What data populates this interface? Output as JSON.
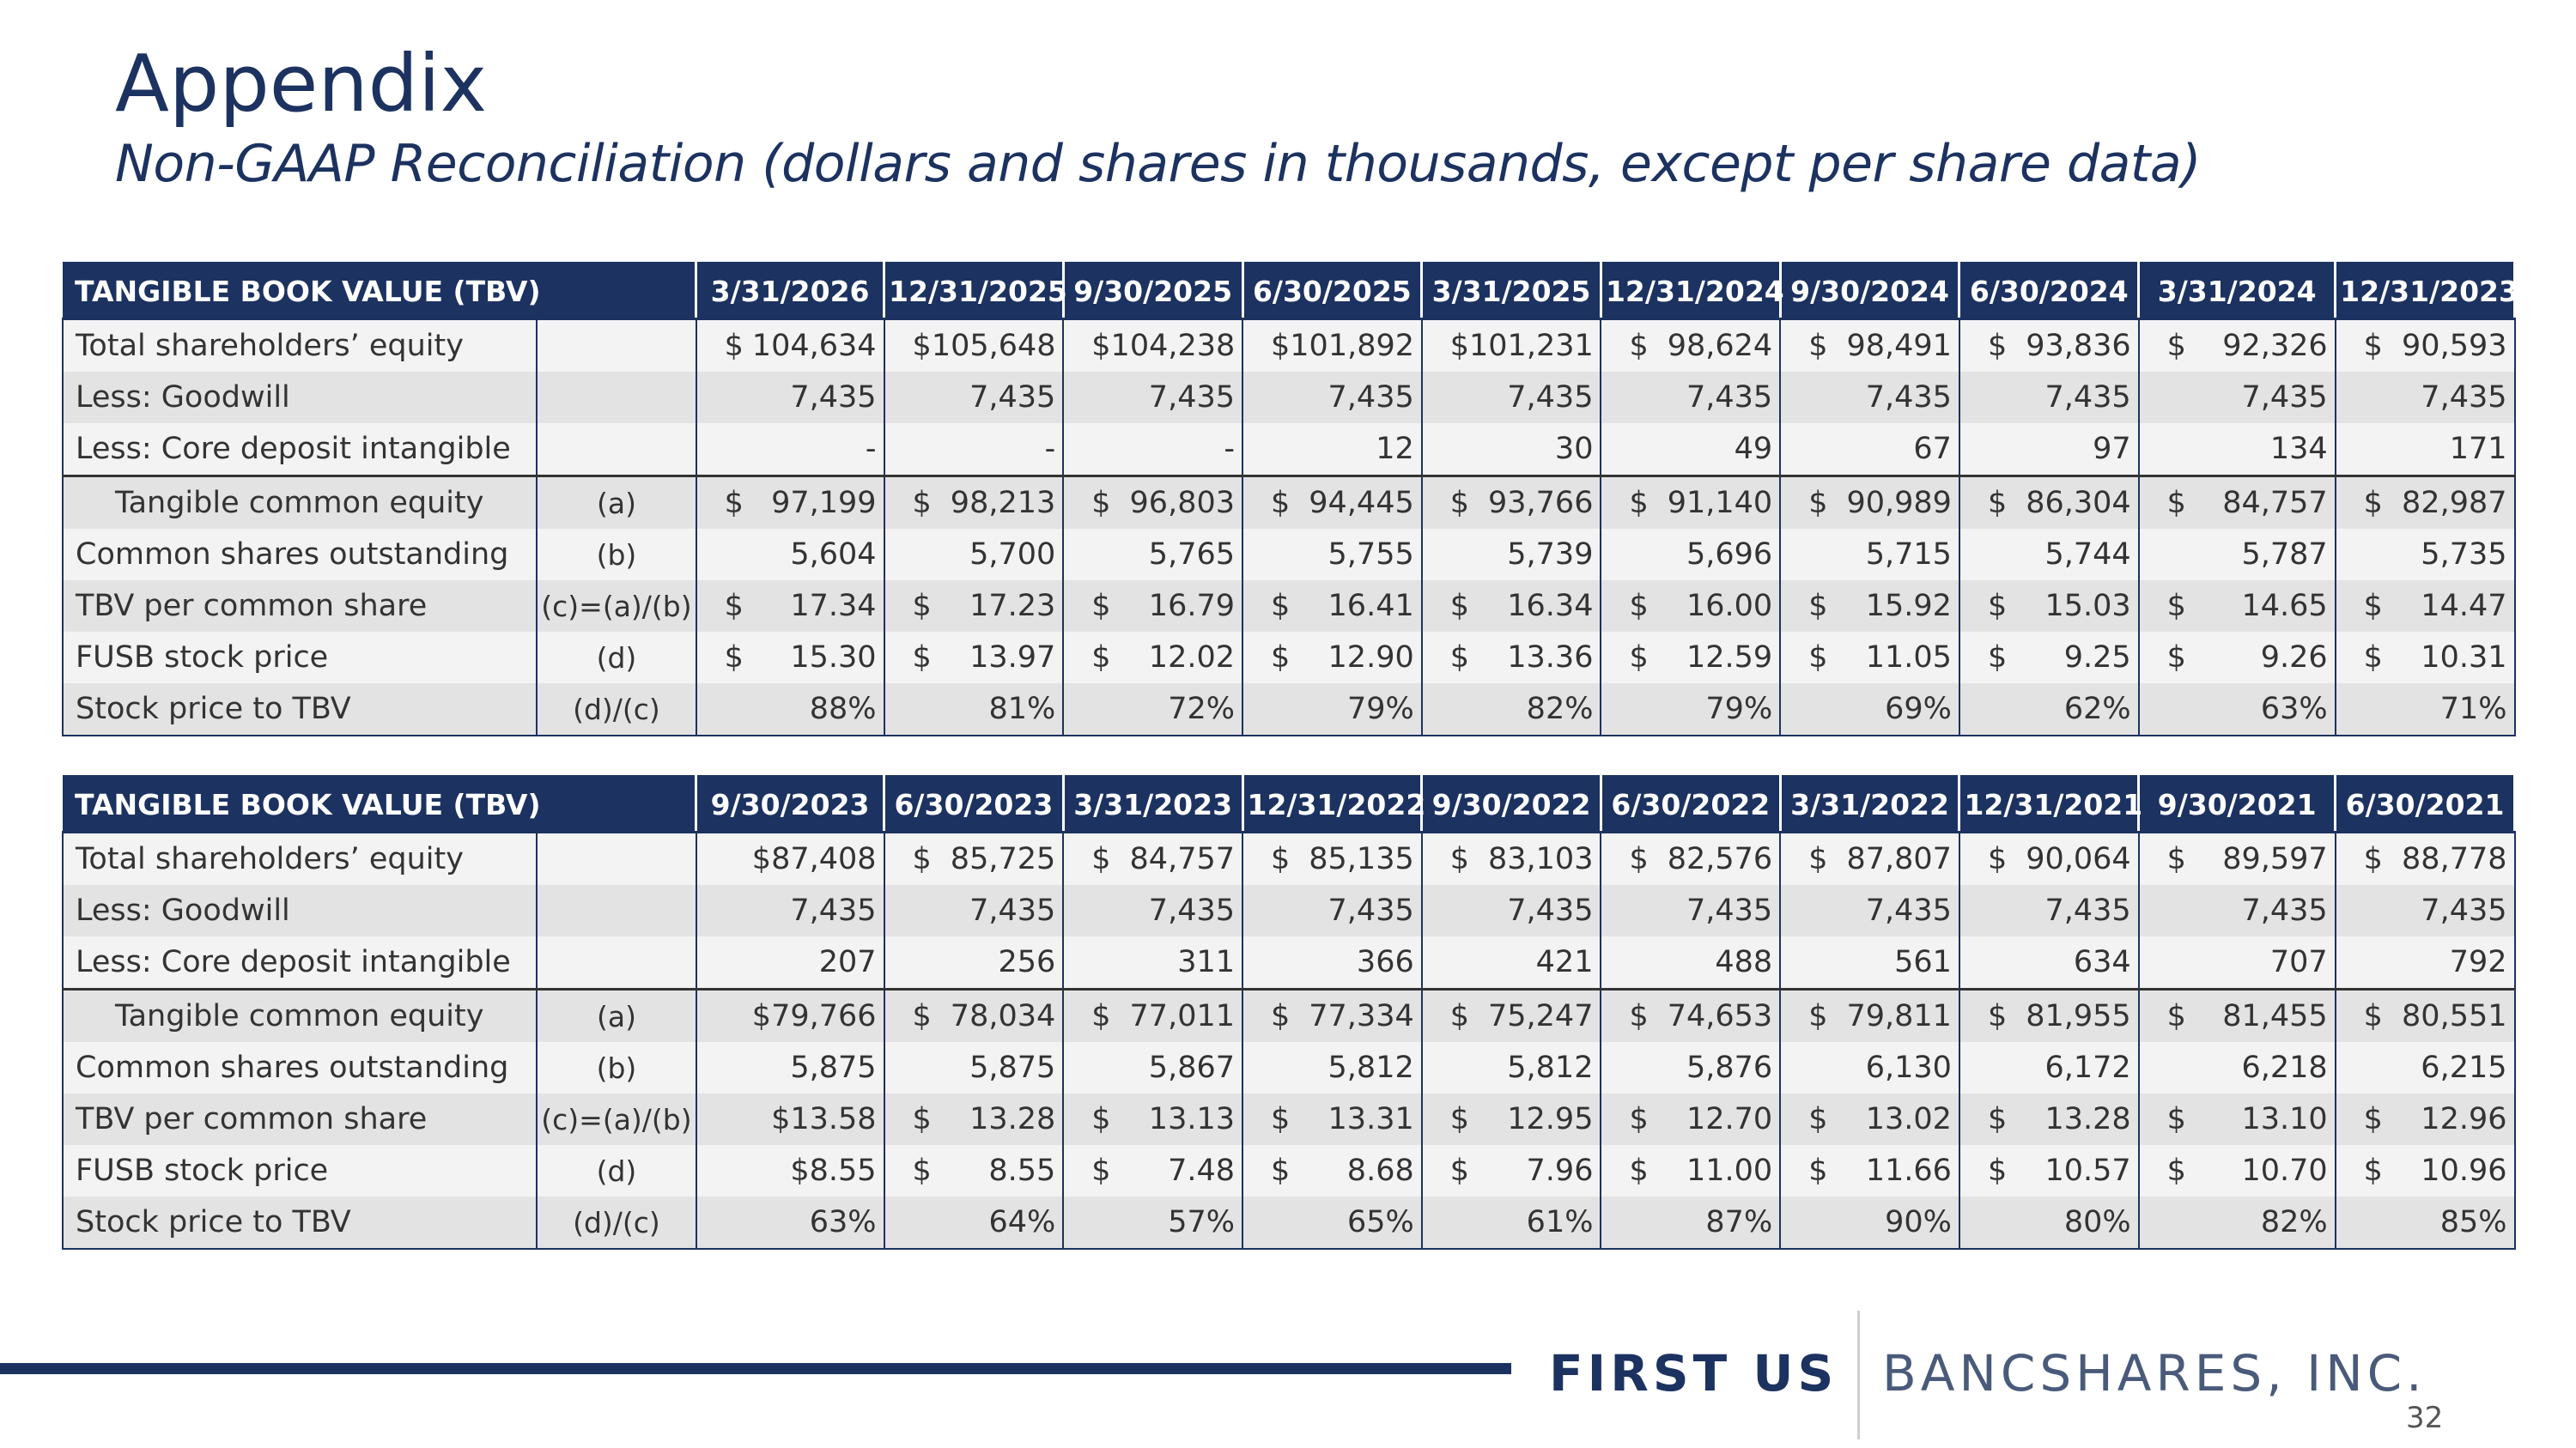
{
  "title": "Appendix",
  "subtitle": "Non-GAAP Reconciliation (dollars and shares in thousands, except per share data)",
  "tables": [
    {
      "header": "TANGIBLE BOOK VALUE (TBV)",
      "dates": [
        "3/31/2026",
        "12/31/2025",
        "9/30/2025",
        "6/30/2025",
        "3/31/2025",
        "12/31/2024",
        "9/30/2024",
        "6/30/2024",
        "3/31/2024",
        "12/31/2023"
      ],
      "rows": [
        {
          "label": "Total shareholders’ equity",
          "ref": "",
          "cur": [
            "$",
            "$",
            "$",
            "$",
            "$",
            "$",
            "$",
            "$",
            "$",
            "$"
          ],
          "values": [
            "104,634",
            "105,648",
            "104,238",
            "101,892",
            "101,231",
            "98,624",
            "98,491",
            "93,836",
            "92,326",
            "90,593"
          ]
        },
        {
          "label": "Less: Goodwill",
          "ref": "",
          "cur": [
            "",
            "",
            "",
            "",
            "",
            "",
            "",
            "",
            "",
            ""
          ],
          "values": [
            "7,435",
            "7,435",
            "7,435",
            "7,435",
            "7,435",
            "7,435",
            "7,435",
            "7,435",
            "7,435",
            "7,435"
          ]
        },
        {
          "label": "Less: Core deposit intangible",
          "ref": "",
          "cur": [
            "",
            "",
            "",
            "",
            "",
            "",
            "",
            "",
            "",
            ""
          ],
          "values": [
            "-",
            "-",
            "-",
            "12",
            "30",
            "49",
            "67",
            "97",
            "134",
            "171"
          ]
        },
        {
          "label": "Tangible common equity",
          "ref": "(a)",
          "cur": [
            "$",
            "$",
            "$",
            "$",
            "$",
            "$",
            "$",
            "$",
            "$",
            "$"
          ],
          "values": [
            "97,199",
            "98,213",
            "96,803",
            "94,445",
            "93,766",
            "91,140",
            "90,989",
            "86,304",
            "84,757",
            "82,987"
          ]
        },
        {
          "label": "Common shares outstanding",
          "ref": "(b)",
          "cur": [
            "",
            "",
            "",
            "",
            "",
            "",
            "",
            "",
            "",
            ""
          ],
          "values": [
            "5,604",
            "5,700",
            "5,765",
            "5,755",
            "5,739",
            "5,696",
            "5,715",
            "5,744",
            "5,787",
            "5,735"
          ]
        },
        {
          "label": "TBV per common share",
          "ref": "(c)=(a)/(b)",
          "cur": [
            "$",
            "$",
            "$",
            "$",
            "$",
            "$",
            "$",
            "$",
            "$",
            "$"
          ],
          "values": [
            "17.34",
            "17.23",
            "16.79",
            "16.41",
            "16.34",
            "16.00",
            "15.92",
            "15.03",
            "14.65",
            "14.47"
          ]
        },
        {
          "label": "FUSB stock price",
          "ref": "(d)",
          "cur": [
            "$",
            "$",
            "$",
            "$",
            "$",
            "$",
            "$",
            "$",
            "$",
            "$"
          ],
          "values": [
            "15.30",
            "13.97",
            "12.02",
            "12.90",
            "13.36",
            "12.59",
            "11.05",
            "9.25",
            "9.26",
            "10.31"
          ]
        },
        {
          "label": "Stock price to TBV",
          "ref": "(d)/(c)",
          "cur": [
            "",
            "",
            "",
            "",
            "",
            "",
            "",
            "",
            "",
            ""
          ],
          "values": [
            "88%",
            "81%",
            "72%",
            "79%",
            "82%",
            "79%",
            "69%",
            "62%",
            "63%",
            "71%"
          ]
        }
      ]
    },
    {
      "header": "TANGIBLE BOOK VALUE (TBV)",
      "dates": [
        "9/30/2023",
        "6/30/2023",
        "3/31/2023",
        "12/31/2022",
        "9/30/2022",
        "6/30/2022",
        "3/31/2022",
        "12/31/2021",
        "9/30/2021",
        "6/30/2021"
      ],
      "rows": [
        {
          "label": "Total shareholders’ equity",
          "ref": "",
          "cur": [
            "",
            "$",
            "$",
            "$",
            "$",
            "$",
            "$",
            "$",
            "$",
            "$"
          ],
          "values": [
            "$87,408",
            "85,725",
            "84,757",
            "85,135",
            "83,103",
            "82,576",
            "87,807",
            "90,064",
            "89,597",
            "88,778"
          ]
        },
        {
          "label": "Less: Goodwill",
          "ref": "",
          "cur": [
            "",
            "",
            "",
            "",
            "",
            "",
            "",
            "",
            "",
            ""
          ],
          "values": [
            "7,435",
            "7,435",
            "7,435",
            "7,435",
            "7,435",
            "7,435",
            "7,435",
            "7,435",
            "7,435",
            "7,435"
          ]
        },
        {
          "label": "Less: Core deposit intangible",
          "ref": "",
          "cur": [
            "",
            "",
            "",
            "",
            "",
            "",
            "",
            "",
            "",
            ""
          ],
          "values": [
            "207",
            "256",
            "311",
            "366",
            "421",
            "488",
            "561",
            "634",
            "707",
            "792"
          ]
        },
        {
          "label": "Tangible common equity",
          "ref": "(a)",
          "cur": [
            "",
            "$",
            "$",
            "$",
            "$",
            "$",
            "$",
            "$",
            "$",
            "$"
          ],
          "values": [
            "$79,766",
            "78,034",
            "77,011",
            "77,334",
            "75,247",
            "74,653",
            "79,811",
            "81,955",
            "81,455",
            "80,551"
          ]
        },
        {
          "label": "Common shares outstanding",
          "ref": "(b)",
          "cur": [
            "",
            "",
            "",
            "",
            "",
            "",
            "",
            "",
            "",
            ""
          ],
          "values": [
            "5,875",
            "5,875",
            "5,867",
            "5,812",
            "5,812",
            "5,876",
            "6,130",
            "6,172",
            "6,218",
            "6,215"
          ]
        },
        {
          "label": "TBV per common share",
          "ref": "(c)=(a)/(b)",
          "cur": [
            "",
            "$",
            "$",
            "$",
            "$",
            "$",
            "$",
            "$",
            "$",
            "$"
          ],
          "values": [
            "$13.58",
            "13.28",
            "13.13",
            "13.31",
            "12.95",
            "12.70",
            "13.02",
            "13.28",
            "13.10",
            "12.96"
          ]
        },
        {
          "label": "FUSB stock price",
          "ref": "(d)",
          "cur": [
            "",
            "$",
            "$",
            "$",
            "$",
            "$",
            "$",
            "$",
            "$",
            "$"
          ],
          "values": [
            "$8.55",
            "8.55",
            "7.48",
            "8.68",
            "7.96",
            "11.00",
            "11.66",
            "10.57",
            "10.70",
            "10.96"
          ]
        },
        {
          "label": "Stock price to TBV",
          "ref": "(d)/(c)",
          "cur": [
            "",
            "",
            "",
            "",
            "",
            "",
            "",
            "",
            "",
            ""
          ],
          "values": [
            "63%",
            "64%",
            "57%",
            "65%",
            "61%",
            "87%",
            "90%",
            "80%",
            "82%",
            "85%"
          ]
        }
      ]
    }
  ],
  "footer": {
    "logo_first": "FIRST US",
    "logo_bank": "BANCSHARES, INC.",
    "page_number": "32"
  },
  "colors": {
    "navy": "#1c3260",
    "row_alt": "#e3e3e3",
    "row_plain": "#f3f3f3"
  }
}
